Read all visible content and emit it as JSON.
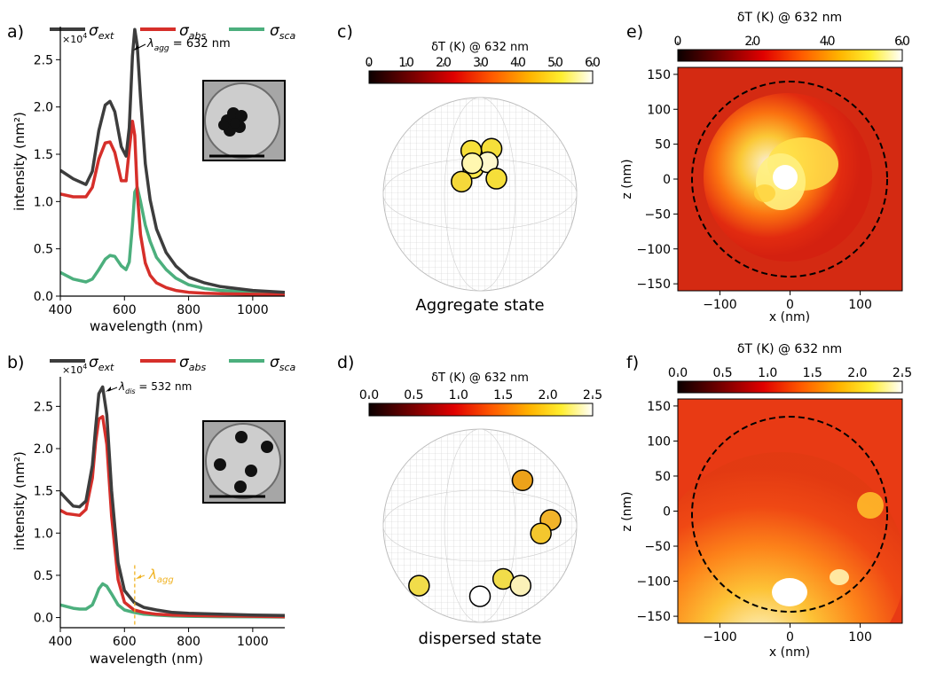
{
  "colors": {
    "ext": "#3d3d3d",
    "abs": "#d62f2a",
    "sca": "#4caf7d",
    "marker": "#f0b323"
  },
  "legend": {
    "ext": "σ",
    "ext_sub": "ext",
    "abs": "σ",
    "abs_sub": "abs",
    "sca": "σ",
    "sca_sub": "sca"
  },
  "chart_data": [
    {
      "panel": "a)",
      "type": "line",
      "xlabel": "wavelength (nm)",
      "ylabel": "intensity (nm²)",
      "xlim": [
        400,
        1100
      ],
      "ylim": [
        0,
        28500
      ],
      "multiplier": "×10",
      "multiplier_exp": "4",
      "xticks": [
        "400",
        "600",
        "800",
        "1000"
      ],
      "yticks": [
        "0.0",
        "0.5",
        "1.0",
        "1.5",
        "2.0",
        "2.5"
      ],
      "annotation": {
        "prefix": "λ",
        "sub": "agg",
        "text": " = 632 nm",
        "x": 632,
        "y": 28200
      },
      "series": [
        {
          "name": "σ_ext",
          "x": [
            400,
            440,
            480,
            500,
            520,
            540,
            555,
            570,
            590,
            605,
            615,
            625,
            632,
            640,
            650,
            665,
            680,
            700,
            730,
            760,
            800,
            850,
            900,
            1000,
            1100
          ],
          "y": [
            13300,
            12400,
            11800,
            13200,
            17500,
            20200,
            20600,
            19500,
            15800,
            14800,
            17800,
            25400,
            28200,
            26500,
            21000,
            14000,
            10200,
            7100,
            4600,
            3200,
            2000,
            1400,
            1000,
            600,
            400
          ]
        },
        {
          "name": "σ_abs",
          "x": [
            400,
            440,
            480,
            500,
            520,
            540,
            555,
            570,
            590,
            605,
            615,
            625,
            632,
            640,
            650,
            665,
            680,
            700,
            730,
            760,
            800,
            850,
            900,
            1000,
            1100
          ],
          "y": [
            10800,
            10500,
            10500,
            11500,
            14500,
            16200,
            16300,
            15200,
            12200,
            12200,
            15500,
            18500,
            17000,
            11000,
            6500,
            3500,
            2200,
            1400,
            900,
            600,
            400,
            300,
            250,
            200,
            150
          ]
        },
        {
          "name": "σ_sca",
          "x": [
            400,
            440,
            480,
            500,
            520,
            540,
            555,
            570,
            590,
            605,
            615,
            625,
            632,
            640,
            650,
            665,
            680,
            700,
            730,
            760,
            800,
            850,
            900,
            1000,
            1100
          ],
          "y": [
            2500,
            1800,
            1500,
            1800,
            2800,
            3900,
            4300,
            4200,
            3200,
            2800,
            3600,
            7500,
            11000,
            11500,
            10000,
            7500,
            5800,
            4100,
            2800,
            1900,
            1200,
            800,
            600,
            400,
            300
          ]
        }
      ]
    },
    {
      "panel": "b)",
      "type": "line",
      "xlabel": "wavelength (nm)",
      "ylabel": "intensity (nm²)",
      "xlim": [
        400,
        1100
      ],
      "ylim": [
        -1200,
        28500
      ],
      "multiplier": "×10",
      "multiplier_exp": "4",
      "xticks": [
        "400",
        "600",
        "800",
        "1000"
      ],
      "yticks": [
        "0.0",
        "0.5",
        "1.0",
        "1.5",
        "2.0",
        "2.5"
      ],
      "annotation": {
        "prefix": "λ",
        "sub": "dis",
        "text": " = 532 nm",
        "x": 532,
        "y": 27300
      },
      "marker": {
        "x": 632,
        "prefix": "λ",
        "sub": "agg"
      },
      "series": [
        {
          "name": "σ_ext",
          "x": [
            400,
            420,
            440,
            460,
            480,
            500,
            510,
            520,
            532,
            545,
            560,
            580,
            600,
            630,
            660,
            700,
            750,
            800,
            900,
            1000,
            1100
          ],
          "y": [
            14800,
            14000,
            13200,
            13100,
            13800,
            18000,
            22500,
            26500,
            27300,
            24000,
            15000,
            6500,
            3200,
            1800,
            1200,
            900,
            600,
            500,
            400,
            300,
            250
          ]
        },
        {
          "name": "σ_abs",
          "x": [
            400,
            420,
            440,
            460,
            480,
            500,
            510,
            520,
            532,
            545,
            560,
            580,
            600,
            630,
            660,
            700,
            750,
            800,
            900,
            1000,
            1100
          ],
          "y": [
            12700,
            12300,
            12200,
            12100,
            12800,
            16500,
            20800,
            23500,
            23800,
            20500,
            12000,
            4500,
            1800,
            900,
            600,
            400,
            300,
            250,
            200,
            150,
            100
          ]
        },
        {
          "name": "σ_sca",
          "x": [
            400,
            420,
            440,
            460,
            480,
            500,
            510,
            520,
            532,
            545,
            560,
            580,
            600,
            630,
            660,
            700,
            750,
            800,
            900,
            1000,
            1100
          ],
          "y": [
            1500,
            1300,
            1100,
            1000,
            1000,
            1500,
            2400,
            3400,
            4000,
            3700,
            2800,
            1500,
            900,
            600,
            400,
            300,
            200,
            150,
            100,
            80,
            60
          ]
        }
      ]
    },
    {
      "panel": "c)",
      "type": "heatmap",
      "colorbar_title": "δT (K) @ 632 nm",
      "colorbar_ticks": [
        "0",
        "10",
        "20",
        "30",
        "40",
        "50",
        "60"
      ],
      "caption": "Aggregate state",
      "particles": [
        {
          "x": -0.09,
          "y": -0.45,
          "fill": "#f6df3a"
        },
        {
          "x": 0.12,
          "y": -0.47,
          "fill": "#f6df3a"
        },
        {
          "x": -0.07,
          "y": -0.27,
          "fill": "#fbe84a"
        },
        {
          "x": 0.08,
          "y": -0.33,
          "fill": "#fff8cc"
        },
        {
          "x": -0.19,
          "y": -0.13,
          "fill": "#f5d93a"
        },
        {
          "x": 0.17,
          "y": -0.16,
          "fill": "#f6df3a"
        },
        {
          "x": -0.08,
          "y": -0.32,
          "fill": "#fff7b0"
        }
      ]
    },
    {
      "panel": "d)",
      "type": "heatmap",
      "colorbar_title": "δT (K) @ 632 nm",
      "colorbar_ticks": [
        "0.0",
        "0.5",
        "1.0",
        "1.5",
        "2.0",
        "2.5"
      ],
      "caption": "dispersed state",
      "particles": [
        {
          "x": 0.44,
          "y": -0.47,
          "fill": "#eda21a"
        },
        {
          "x": 0.73,
          "y": -0.06,
          "fill": "#f2b42a"
        },
        {
          "x": 0.63,
          "y": 0.08,
          "fill": "#f4c72e"
        },
        {
          "x": -0.63,
          "y": 0.62,
          "fill": "#f1dc4a"
        },
        {
          "x": 0.24,
          "y": 0.55,
          "fill": "#f1dc4a"
        },
        {
          "x": 0.42,
          "y": 0.62,
          "fill": "#fbf1b8"
        },
        {
          "x": 0.0,
          "y": 0.73,
          "fill": "#ffffff"
        }
      ]
    },
    {
      "panel": "e)",
      "type": "heatmap",
      "colorbar_title": "δT (K) @ 632 nm",
      "colorbar_ticks": [
        "0",
        "20",
        "40",
        "60"
      ],
      "xlabel": "x (nm)",
      "ylabel": "z (nm)",
      "xticks": [
        "−100",
        "0",
        "100"
      ],
      "yticks": [
        "150",
        "100",
        "50",
        "0",
        "−50",
        "−100",
        "−150"
      ],
      "xlim": [
        -160,
        160
      ],
      "ylim": [
        -160,
        160
      ],
      "circle_radius": 140
    },
    {
      "panel": "f)",
      "type": "heatmap",
      "colorbar_title": "δT (K) @ 632 nm",
      "colorbar_ticks": [
        "0.0",
        "0.5",
        "1.0",
        "1.5",
        "2.0",
        "2.5"
      ],
      "xlabel": "x (nm)",
      "ylabel": "z (nm)",
      "xticks": [
        "−100",
        "0",
        "100"
      ],
      "yticks": [
        "150",
        "100",
        "50",
        "0",
        "−50",
        "−100",
        "−150"
      ],
      "xlim": [
        -160,
        160
      ],
      "ylim": [
        -160,
        160
      ],
      "circle_radius": 140
    }
  ]
}
